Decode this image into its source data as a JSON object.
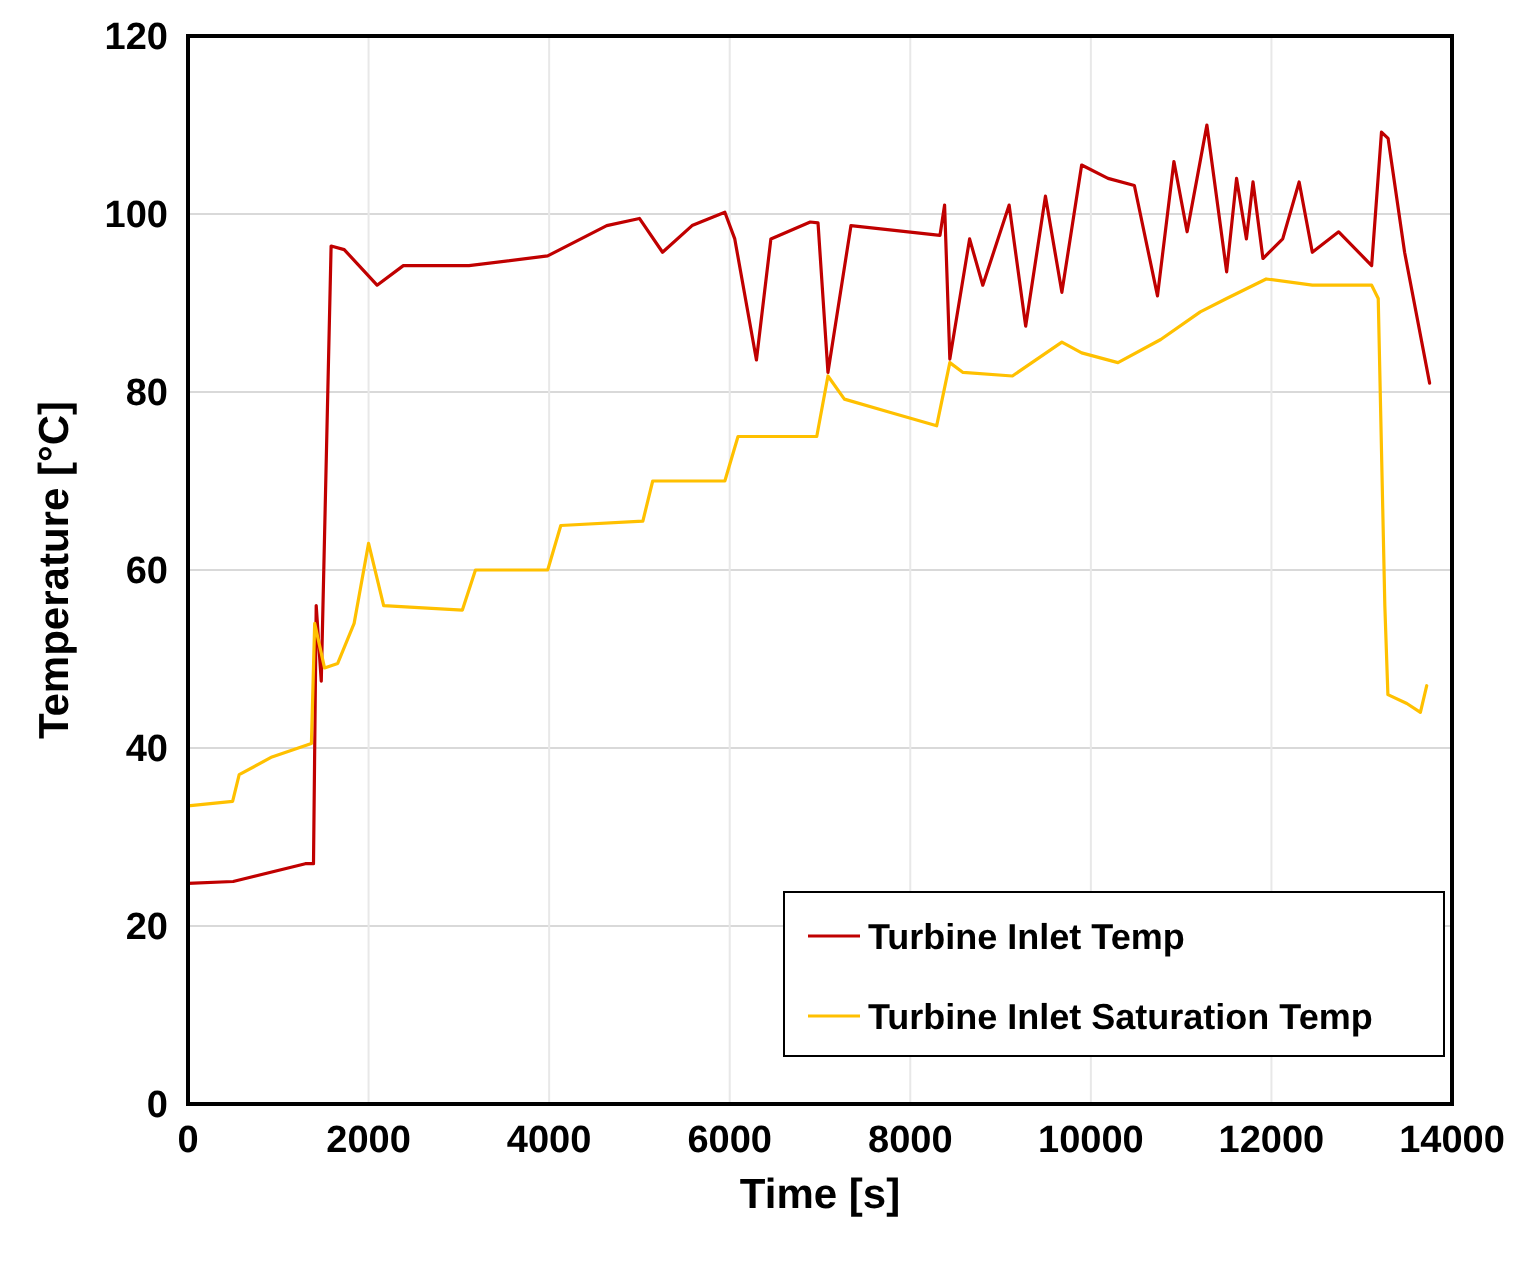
{
  "chart_data": {
    "type": "line",
    "xlabel": "Time [s]",
    "ylabel": "Temperature [°C]",
    "xlim": [
      0,
      14000
    ],
    "ylim": [
      0,
      120
    ],
    "xticks": [
      0,
      2000,
      4000,
      6000,
      8000,
      10000,
      12000,
      14000
    ],
    "yticks": [
      0,
      20,
      40,
      60,
      80,
      100,
      120
    ],
    "grid": true,
    "legend": "bottom right",
    "marker": "none",
    "line_style": "solid",
    "series": [
      {
        "name": "Turbine Inlet Temp",
        "color": "#c00000",
        "x": [
          0,
          500,
          1300,
          1390,
          1420,
          1476,
          1585,
          1730,
          2094,
          2385,
          3112,
          3984,
          4638,
          5000,
          5256,
          5583,
          5946,
          6056,
          6296,
          6456,
          6892,
          6978,
          7088,
          7343,
          8329,
          8380,
          8438,
          8657,
          8803,
          9095,
          9278,
          9497,
          9679,
          9898,
          10190,
          10482,
          10738,
          10920,
          11066,
          11176,
          11285,
          11504,
          11614,
          11723,
          11796,
          11906,
          12125,
          12307,
          12453,
          12745,
          13110,
          13219,
          13292,
          13475,
          13752
        ],
        "values": [
          24.8,
          25,
          27,
          27,
          56,
          47.5,
          96.4,
          96,
          92,
          94.2,
          94.2,
          95.3,
          98.7,
          99.5,
          95.7,
          98.7,
          100.2,
          97.2,
          83.6,
          97.2,
          99.1,
          99,
          82.2,
          98.7,
          97.6,
          101,
          83.7,
          97.2,
          92,
          101,
          87.4,
          102,
          91.2,
          105.5,
          104,
          103.2,
          90.8,
          105.9,
          98,
          104,
          110,
          93.5,
          104,
          97.2,
          103.6,
          95,
          97.2,
          103.6,
          95.7,
          98,
          94.2,
          109.2,
          108.5,
          95.7,
          81
        ]
      },
      {
        "name": "Turbine Inlet Saturation Temp",
        "color": "#ffc000",
        "x": [
          0,
          494,
          567,
          930,
          1367,
          1403,
          1512,
          1658,
          1840,
          2000,
          2167,
          3039,
          3184,
          3984,
          4129,
          5038,
          5147,
          5946,
          6092,
          6964,
          7088,
          7270,
          7781,
          8292,
          8438,
          8584,
          9131,
          9679,
          9898,
          10300,
          10774,
          11212,
          11504,
          11942,
          12453,
          13110,
          13183,
          13256,
          13290,
          13500,
          13650,
          13720
        ],
        "values": [
          33.5,
          34,
          37,
          39,
          40.5,
          54,
          49,
          49.5,
          54,
          63,
          56,
          55.5,
          60,
          60,
          65,
          65.5,
          70,
          70,
          75,
          75,
          81.8,
          79.2,
          77.7,
          76.2,
          83.3,
          82.2,
          81.8,
          85.6,
          84.4,
          83.3,
          85.9,
          89,
          90.5,
          92.7,
          92,
          92,
          90.5,
          56,
          46,
          45,
          44,
          47
        ]
      }
    ]
  }
}
